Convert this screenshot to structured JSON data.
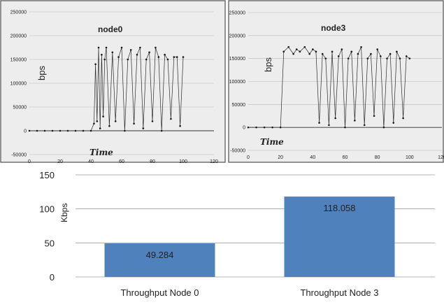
{
  "chart_data": [
    {
      "type": "scatter",
      "title": "node0",
      "xlabel": "Time",
      "ylabel": "bps",
      "xlim": [
        0,
        120
      ],
      "ylim": [
        -50000,
        250000
      ],
      "xticks": [
        "0",
        "20",
        "40",
        "60",
        "80",
        "100",
        "120"
      ],
      "yticks": [
        "250000",
        "200000",
        "150000",
        "100000",
        "50000",
        "0",
        "-50000"
      ],
      "grid": true,
      "series": [
        {
          "x": [
            0,
            5,
            10,
            15,
            20,
            25,
            30,
            35,
            40,
            42,
            43,
            44,
            45,
            46,
            47,
            48,
            49,
            50,
            52,
            54,
            56,
            58,
            60,
            62,
            64,
            66,
            68,
            70,
            72,
            74,
            76,
            78,
            80,
            82,
            84,
            86,
            88,
            90,
            92,
            94,
            96,
            98,
            100
          ],
          "y": [
            0,
            0,
            0,
            0,
            0,
            0,
            0,
            0,
            0,
            15000,
            140000,
            20000,
            175000,
            5000,
            160000,
            30000,
            150000,
            175000,
            10000,
            165000,
            20000,
            155000,
            175000,
            0,
            150000,
            170000,
            15000,
            160000,
            175000,
            5000,
            150000,
            165000,
            20000,
            175000,
            155000,
            0,
            160000,
            150000,
            25000,
            155000,
            155000,
            10000,
            155000
          ]
        }
      ]
    },
    {
      "type": "scatter",
      "title": "node3",
      "xlabel": "Time",
      "ylabel": "bps",
      "xlim": [
        0,
        120
      ],
      "ylim": [
        -50000,
        250000
      ],
      "xticks": [
        "0",
        "20",
        "40",
        "60",
        "80",
        "100",
        "120"
      ],
      "yticks": [
        "250000",
        "200000",
        "150000",
        "100000",
        "50000",
        "0",
        "-50000"
      ],
      "grid": true,
      "series": [
        {
          "x": [
            0,
            5,
            10,
            15,
            20,
            22,
            25,
            28,
            30,
            32,
            35,
            38,
            40,
            42,
            44,
            46,
            48,
            50,
            52,
            54,
            56,
            58,
            60,
            62,
            64,
            66,
            68,
            70,
            72,
            74,
            76,
            78,
            80,
            82,
            84,
            86,
            88,
            90,
            92,
            94,
            96,
            98,
            100
          ],
          "y": [
            0,
            0,
            0,
            0,
            0,
            165000,
            175000,
            160000,
            170000,
            165000,
            175000,
            160000,
            170000,
            165000,
            10000,
            160000,
            150000,
            5000,
            165000,
            20000,
            155000,
            170000,
            0,
            150000,
            165000,
            15000,
            160000,
            175000,
            5000,
            150000,
            160000,
            25000,
            170000,
            155000,
            0,
            150000,
            160000,
            10000,
            165000,
            150000,
            20000,
            155000,
            150000
          ]
        }
      ]
    },
    {
      "type": "bar",
      "categories": [
        "Throughput Node 0",
        "Throughput Node 3"
      ],
      "values": [
        49.284,
        118.058
      ],
      "value_labels": [
        "49.284",
        "118.058"
      ],
      "ylabel": "Kbps",
      "ylim": [
        0,
        150
      ],
      "yticks": [
        "0",
        "50",
        "100",
        "150"
      ],
      "grid": true,
      "colors": {
        "bar": "#4f81bd"
      }
    }
  ]
}
